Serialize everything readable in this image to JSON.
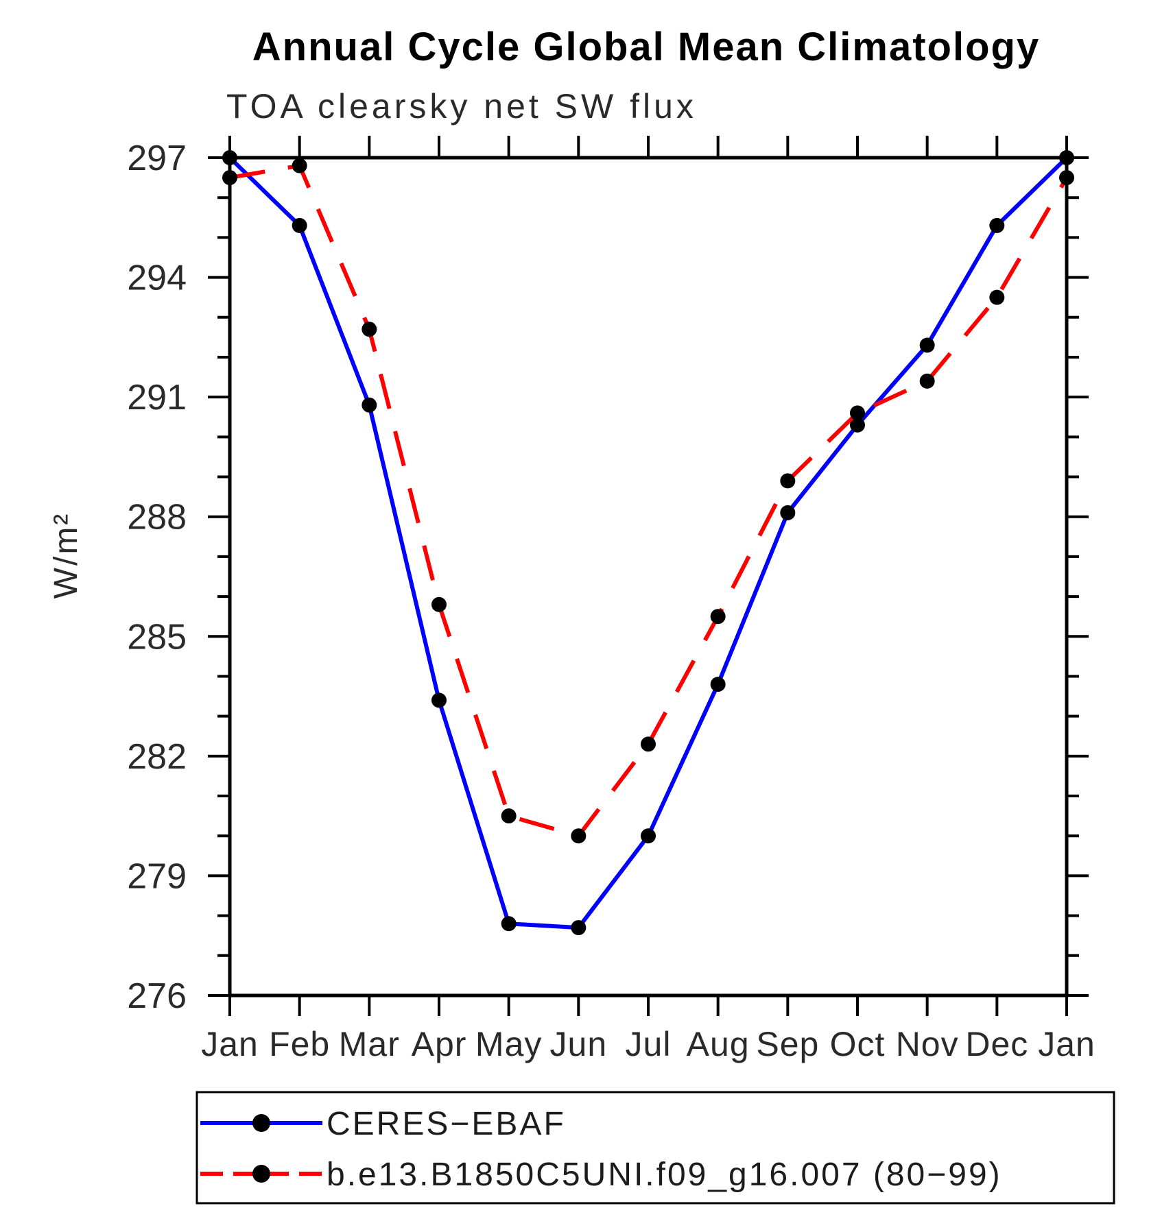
{
  "chart_data": {
    "type": "line",
    "title": "Annual Cycle Global Mean Climatology",
    "subtitle": "TOA clearsky net SW flux",
    "ylabel": "W/m²",
    "xlabel": "",
    "x_categories": [
      "Jan",
      "Feb",
      "Mar",
      "Apr",
      "May",
      "Jun",
      "Jul",
      "Aug",
      "Sep",
      "Oct",
      "Nov",
      "Dec",
      "Jan"
    ],
    "ylim": [
      276,
      297
    ],
    "y_major_step": 3,
    "y_minor_step": 1,
    "y_tick_labels": [
      "276",
      "279",
      "282",
      "285",
      "288",
      "291",
      "294",
      "297"
    ],
    "grid": false,
    "legend_position": "bottom-left-box",
    "axis_color": "#000000",
    "marker_shape": "circle",
    "series": [
      {
        "name": "CERES−EBAF",
        "line_style": "solid",
        "line_color": "#0000ff",
        "marker_color": "#000000",
        "values": [
          297.0,
          295.3,
          290.8,
          283.4,
          277.8,
          277.7,
          280.0,
          283.8,
          288.1,
          290.3,
          292.3,
          295.3,
          297.0
        ]
      },
      {
        "name": "b.e13.B1850C5UNI.f09_g16.007 (80−99)",
        "line_style": "dashed",
        "line_color": "#ff0000",
        "marker_color": "#000000",
        "values": [
          296.5,
          296.8,
          292.7,
          285.8,
          280.5,
          280.0,
          282.3,
          285.5,
          288.9,
          290.6,
          291.4,
          293.5,
          296.5
        ]
      }
    ]
  }
}
